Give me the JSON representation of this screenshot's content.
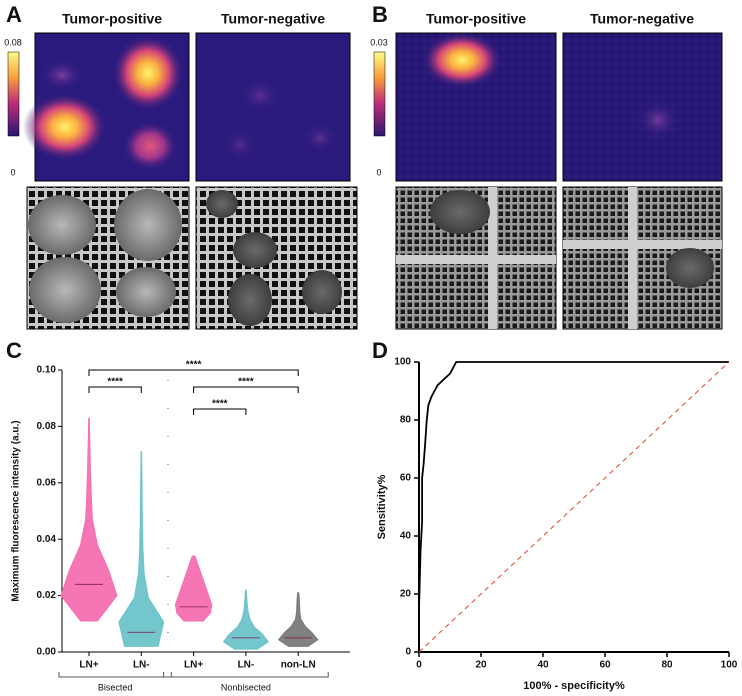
{
  "images": [
    {
      "letter": "A",
      "titles": [
        "Tumor-positive",
        "Tumor-negative"
      ],
      "colorbar": {
        "max": 0.08,
        "min": 0
      }
    },
    {
      "letter": "B",
      "titles": [
        "Tumor-positive",
        "Tumor-negative"
      ],
      "colorbar": {
        "max": 0.03,
        "min": 0
      }
    }
  ],
  "chart_data": [
    {
      "type": "violin",
      "letter": "C",
      "ylabel": "Maximum fluorescence intensity (a.u.)",
      "ylim": [
        0,
        0.1
      ],
      "yticks": [
        {
          "value": 0,
          "label": "0.00"
        },
        {
          "value": 0.02,
          "label": "0.02"
        },
        {
          "value": 0.04,
          "label": "0.04"
        },
        {
          "value": 0.06,
          "label": "0.06"
        },
        {
          "value": 0.08,
          "label": "0.08"
        },
        {
          "value": 0.1,
          "label": "0.10"
        }
      ],
      "categories": [
        "LN+",
        "LN-",
        "LN+",
        "LN-",
        "non-LN"
      ],
      "series": [
        {
          "color": "#f56fb1",
          "min": 0.011,
          "max": 0.083,
          "median": 0.024,
          "density": [
            0.3,
            1.0,
            0.7,
            0.3,
            0.12,
            0.08,
            0.05,
            0.03,
            0.01
          ]
        },
        {
          "color": "#6cc3c8",
          "min": 0.002,
          "max": 0.071,
          "median": 0.007,
          "density": [
            0.6,
            0.8,
            0.25,
            0.1,
            0.06,
            0.04,
            0.03,
            0.02,
            0.01
          ]
        },
        {
          "color": "#f56fb1",
          "min": 0.011,
          "max": 0.034,
          "median": 0.016,
          "density": [
            0.35,
            0.6,
            0.65,
            0.55,
            0.45,
            0.35,
            0.25,
            0.15,
            0.05
          ]
        },
        {
          "color": "#6cc3c8",
          "min": 0.001,
          "max": 0.022,
          "median": 0.005,
          "density": [
            0.4,
            0.8,
            0.6,
            0.3,
            0.15,
            0.08,
            0.05,
            0.03,
            0.01
          ]
        },
        {
          "color": "#7a7a7a",
          "min": 0.002,
          "max": 0.021,
          "median": 0.005,
          "density": [
            0.35,
            0.7,
            0.5,
            0.25,
            0.1,
            0.06,
            0.05,
            0.04,
            0.02
          ]
        }
      ],
      "brackets": [
        {
          "from": 0,
          "to": 4,
          "label": "****"
        },
        {
          "from": 0,
          "to": 1,
          "label": "****"
        },
        {
          "from": 2,
          "to": 4,
          "label": "****"
        },
        {
          "from": 2,
          "to": 3,
          "label": "****"
        }
      ],
      "groups": [
        {
          "label": "Bisected",
          "from": 0,
          "to": 1
        },
        {
          "label": "Nonbisected",
          "from": 2,
          "to": 4
        }
      ]
    },
    {
      "type": "line",
      "letter": "D",
      "xlabel": "100% - specificity%",
      "ylabel": "Sensitivity%",
      "xlim": [
        0,
        100
      ],
      "ylim": [
        0,
        100
      ],
      "xticks": [
        0,
        20,
        40,
        60,
        80,
        100
      ],
      "yticks": [
        0,
        20,
        40,
        60,
        80,
        100
      ],
      "series": [
        {
          "color": "#000000",
          "x": [
            0,
            0,
            0.5,
            1,
            1,
            1.5,
            2,
            2.5,
            3,
            4,
            5,
            6,
            8,
            10,
            11,
            12,
            100
          ],
          "values": [
            0,
            15,
            35,
            45,
            60,
            65,
            72,
            80,
            85,
            88,
            90,
            92,
            94,
            96,
            98,
            100,
            100
          ]
        },
        {
          "color": "#e8412c",
          "dashed": true,
          "x": [
            0,
            100
          ],
          "values": [
            0,
            100
          ]
        }
      ]
    }
  ]
}
